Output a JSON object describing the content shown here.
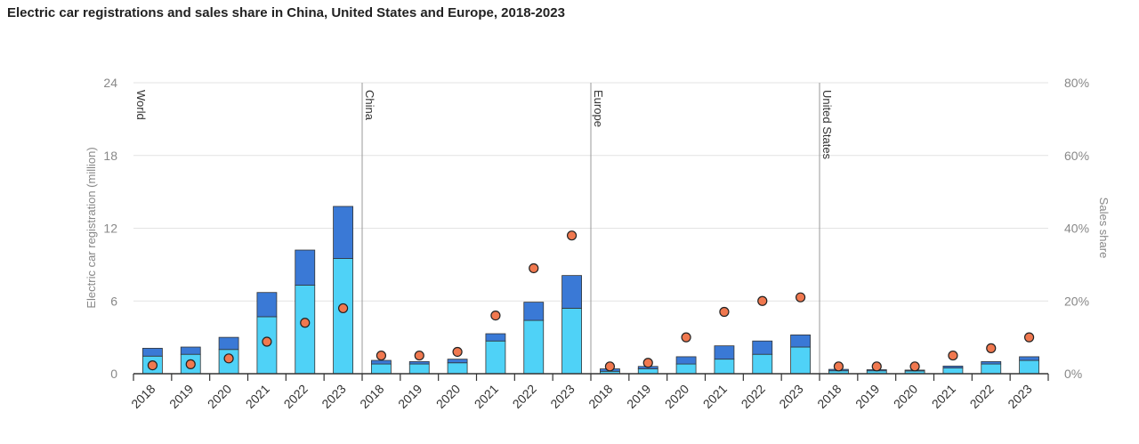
{
  "chart_data": {
    "type": "bar",
    "title": "Electric car registrations and sales share in China, United States and Europe, 2018-2023",
    "ylabel": "Electric car registration (million)",
    "y2label": "Sales share",
    "ylim": [
      0,
      24
    ],
    "y2lim": [
      0,
      80
    ],
    "yticks": [
      "0",
      "6",
      "12",
      "18",
      "24"
    ],
    "y2ticks": [
      "0%",
      "20%",
      "40%",
      "60%",
      "80%"
    ],
    "grid": true,
    "categories": [
      "2018",
      "2019",
      "2020",
      "2021",
      "2022",
      "2023"
    ],
    "colors": {
      "bev": "#4fd2f7",
      "phev": "#3a79d6",
      "share": "#f0784f"
    },
    "panels": [
      {
        "name": "World",
        "bev": [
          1.45,
          1.6,
          2.0,
          4.7,
          7.3,
          9.5
        ],
        "phev": [
          0.65,
          0.6,
          1.0,
          2.0,
          2.9,
          4.3
        ],
        "share": [
          2.3,
          2.6,
          4.2,
          8.8,
          14,
          18
        ]
      },
      {
        "name": "China",
        "bev": [
          0.8,
          0.8,
          0.9,
          2.7,
          4.4,
          5.4
        ],
        "phev": [
          0.3,
          0.2,
          0.3,
          0.6,
          1.5,
          2.7
        ],
        "share": [
          5,
          5,
          6,
          16,
          29,
          38
        ]
      },
      {
        "name": "Europe",
        "bev": [
          0.2,
          0.4,
          0.8,
          1.2,
          1.6,
          2.2
        ],
        "phev": [
          0.2,
          0.2,
          0.6,
          1.1,
          1.1,
          1.0
        ],
        "share": [
          2,
          3,
          10,
          17,
          20,
          21
        ]
      },
      {
        "name": "United States",
        "bev": [
          0.24,
          0.24,
          0.23,
          0.47,
          0.8,
          1.1
        ],
        "phev": [
          0.12,
          0.09,
          0.07,
          0.16,
          0.2,
          0.3
        ],
        "share": [
          2,
          2,
          2,
          5,
          7,
          10
        ]
      }
    ]
  }
}
